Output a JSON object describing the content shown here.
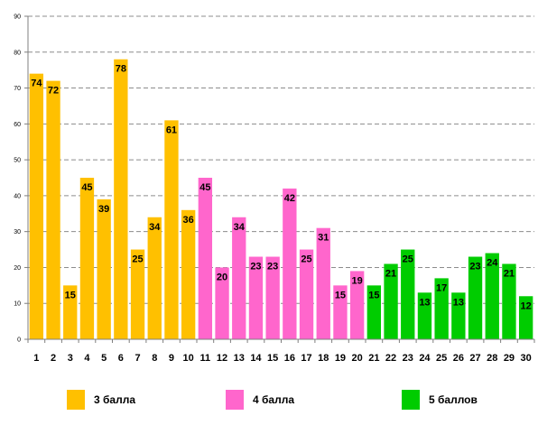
{
  "chart_data": {
    "type": "bar",
    "title": "",
    "xlabel": "",
    "ylabel": "",
    "ylim": [
      0,
      90
    ],
    "yticks": [
      0,
      10,
      20,
      30,
      40,
      50,
      60,
      70,
      80,
      90
    ],
    "grid": true,
    "legend_position": "bottom",
    "categories": [
      "1",
      "2",
      "3",
      "4",
      "5",
      "6",
      "7",
      "8",
      "9",
      "10",
      "11",
      "12",
      "13",
      "14",
      "15",
      "16",
      "17",
      "18",
      "19",
      "20",
      "21",
      "22",
      "23",
      "24",
      "25",
      "26",
      "27",
      "28",
      "29",
      "30"
    ],
    "values": [
      74,
      72,
      15,
      45,
      39,
      78,
      25,
      34,
      61,
      36,
      45,
      20,
      34,
      23,
      23,
      42,
      25,
      31,
      15,
      19,
      15,
      21,
      25,
      13,
      17,
      13,
      23,
      24,
      21,
      12
    ],
    "groups": [
      {
        "name": "3 балла",
        "color": "#FFC000",
        "from": 1,
        "to": 10
      },
      {
        "name": "4 балла",
        "color": "#FF66CC",
        "from": 11,
        "to": 20
      },
      {
        "name": "5 баллов",
        "color": "#00CC00",
        "from": 21,
        "to": 30
      }
    ]
  }
}
